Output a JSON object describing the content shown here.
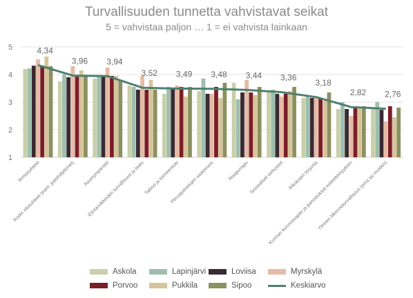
{
  "chart_data": {
    "type": "bar",
    "title": "Turvallisuuden  tunnetta  vahvistavat seikat",
    "subtitle": "5 = vahvistaa  paljon  …  1 = ei vahvista  lainkaan",
    "ylim": [
      1,
      5
    ],
    "yticks": [
      "1",
      "2",
      "3",
      "4",
      "5"
    ],
    "categories": [
      "Ihmissuhteet",
      "Kodin olosuhteet (esim. palohälyttimet)",
      "Asuinympäristö",
      "Elintarvikkeiden turvallisuus ja laatu",
      "Talous ja toimeentulo",
      "Peruspalvelujen saatavuus",
      "Naapuriapu",
      "Sosiaaliset verkostot",
      "Rikoksien torjunta",
      "Kunnan kunnossapito ja panostukset esteettömyyteen",
      "Yleinen liikenneturvallisuus (oma tai muiden)"
    ],
    "series": [
      {
        "name": "Askola",
        "color": "#c9cfaa",
        "values": [
          4.2,
          3.75,
          3.85,
          3.6,
          3.3,
          3.4,
          3.7,
          3.35,
          3.15,
          2.75,
          2.8
        ]
      },
      {
        "name": "Lapinjärvi",
        "color": "#9ebfad",
        "values": [
          4.22,
          4.0,
          3.92,
          3.55,
          3.55,
          3.85,
          3.1,
          3.45,
          3.2,
          3.0,
          3.0
        ]
      },
      {
        "name": "Loviisa",
        "color": "#3a2a33",
        "values": [
          4.32,
          3.9,
          3.95,
          3.45,
          3.5,
          3.3,
          3.35,
          3.3,
          3.15,
          2.75,
          2.72
        ]
      },
      {
        "name": "Myrskylä",
        "color": "#e6bba6",
        "values": [
          4.55,
          4.3,
          4.25,
          3.95,
          3.6,
          3.3,
          3.8,
          3.2,
          3.2,
          2.5,
          2.3
        ]
      },
      {
        "name": "Porvoo",
        "color": "#7a1e28",
        "values": [
          4.32,
          3.98,
          3.95,
          3.45,
          3.55,
          3.55,
          3.35,
          3.3,
          3.15,
          2.85,
          2.85
        ]
      },
      {
        "name": "Pukkila",
        "color": "#d7c49a",
        "values": [
          4.65,
          4.15,
          3.95,
          3.8,
          3.2,
          3.15,
          3.25,
          3.4,
          3.05,
          2.8,
          2.45
        ]
      },
      {
        "name": "Sipoo",
        "color": "#8c9160",
        "values": [
          4.3,
          3.95,
          3.8,
          3.45,
          3.55,
          3.7,
          3.55,
          3.55,
          3.35,
          2.85,
          2.8
        ]
      }
    ],
    "line_series": {
      "name": "Keskiarvo",
      "color": "#4f7f6f",
      "values": [
        4.34,
        3.96,
        3.94,
        3.52,
        3.49,
        3.48,
        3.44,
        3.36,
        3.18,
        2.82,
        2.76
      ]
    },
    "data_labels": [
      "4,34",
      "3,96",
      "3,94",
      "3,52",
      "3,49",
      "3,48",
      "3,44",
      "3,36",
      "3,18",
      "2,82",
      "2,76"
    ],
    "grid": true,
    "legend_position": "bottom"
  }
}
